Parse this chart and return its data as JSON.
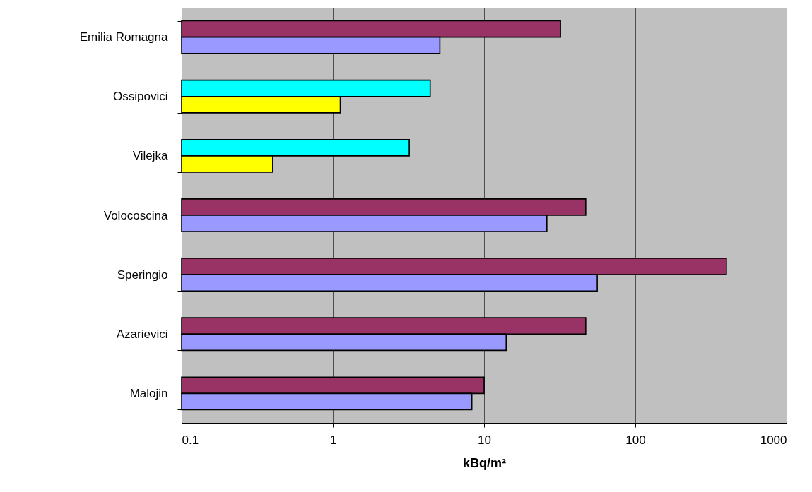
{
  "chart_data": {
    "type": "bar",
    "orientation": "horizontal",
    "xlabel": "kBq/m²",
    "categories": [
      "Emilia Romagna",
      "Ossipovici",
      "Vilejka",
      "Volocoscina",
      "Speringio",
      "Azarievici",
      "Malojin"
    ],
    "series": [
      {
        "colors": [
          "#993366",
          "#00ffff",
          "#00ffff",
          "#993366",
          "#993366",
          "#993366",
          "#993366"
        ],
        "values": [
          32,
          4.4,
          3.2,
          47,
          400,
          47,
          10
        ]
      },
      {
        "colors": [
          "#9999ff",
          "#ffff00",
          "#ffff00",
          "#9999ff",
          "#9999ff",
          "#9999ff",
          "#9999ff"
        ],
        "values": [
          5.1,
          1.12,
          0.4,
          26,
          56,
          14,
          8.3
        ]
      }
    ],
    "log": "x",
    "xlim": [
      0.1,
      1000
    ],
    "xticks": [
      0.1,
      1,
      10,
      100,
      1000
    ],
    "grid": "x"
  }
}
